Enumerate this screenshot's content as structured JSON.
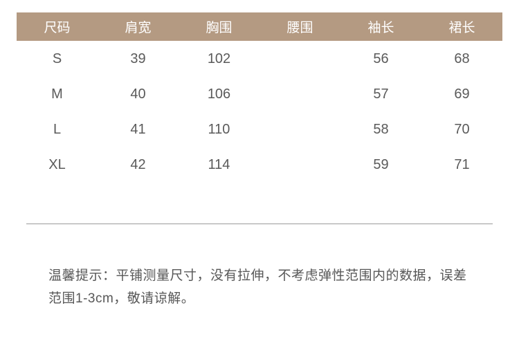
{
  "table": {
    "columns": [
      "尺码",
      "肩宽",
      "胸围",
      "腰围",
      "袖长",
      "裙长"
    ],
    "rows": [
      [
        "S",
        "39",
        "102",
        "",
        "56",
        "68"
      ],
      [
        "M",
        "40",
        "106",
        "",
        "57",
        "69"
      ],
      [
        "L",
        "41",
        "110",
        "",
        "58",
        "70"
      ],
      [
        "XL",
        "42",
        "114",
        "",
        "59",
        "71"
      ]
    ],
    "header_bg": "#b49a82",
    "header_color": "#ffffff",
    "cell_color": "#5a5a5a",
    "fontsize_header": 19,
    "fontsize_cell": 20
  },
  "note": {
    "text": "温馨提示：平铺测量尺寸，没有拉伸，不考虑弹性范围内的数据，误差范围1-3cm，敬请谅解。",
    "fontsize": 19,
    "color": "#575757"
  },
  "divider_color": "#9a9a9a",
  "background_color": "#ffffff"
}
